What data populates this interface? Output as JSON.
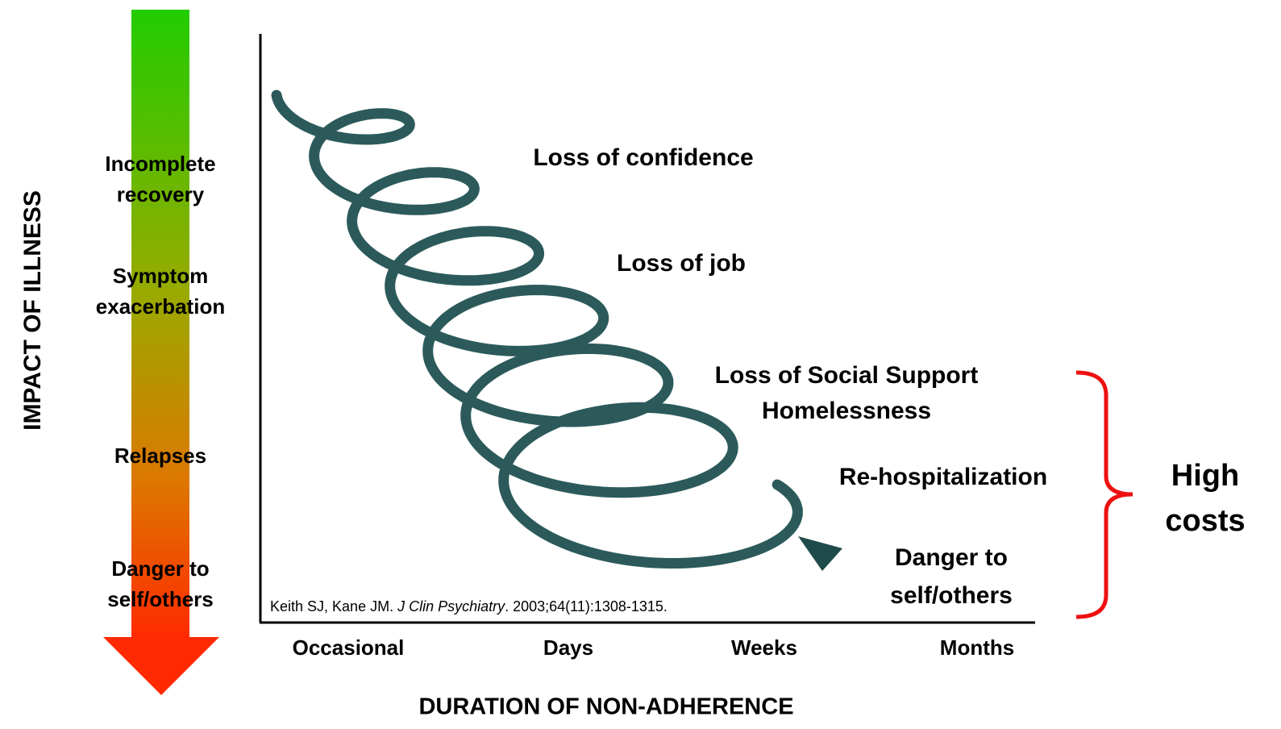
{
  "y_axis_label": "IMPACT OF ILLNESS",
  "impact_levels": [
    {
      "lines": [
        "Incomplete",
        "recovery"
      ]
    },
    {
      "lines": [
        "Symptom",
        "exacerbation"
      ]
    },
    {
      "lines": [
        "Relapses"
      ]
    },
    {
      "lines": [
        "Danger to",
        "self/others"
      ]
    }
  ],
  "consequences": [
    {
      "lines": [
        "Loss of confidence"
      ]
    },
    {
      "lines": [
        "Loss of job"
      ]
    },
    {
      "lines": [
        "Loss of Social Support",
        "Homelessness"
      ]
    },
    {
      "lines": [
        "Re-hospitalization"
      ]
    },
    {
      "lines": [
        "Danger to",
        "self/others"
      ]
    }
  ],
  "x_categories": [
    "Occasional",
    "Days",
    "Weeks",
    "Months"
  ],
  "x_axis_label": "DURATION OF NON-ADHERENCE",
  "citation": {
    "authors": "Keith SJ, Kane JM. ",
    "journal": "J Clin Psychiatry",
    "details": ". 2003;64(11):1308-1315."
  },
  "bracket_label": [
    "High",
    "costs"
  ]
}
